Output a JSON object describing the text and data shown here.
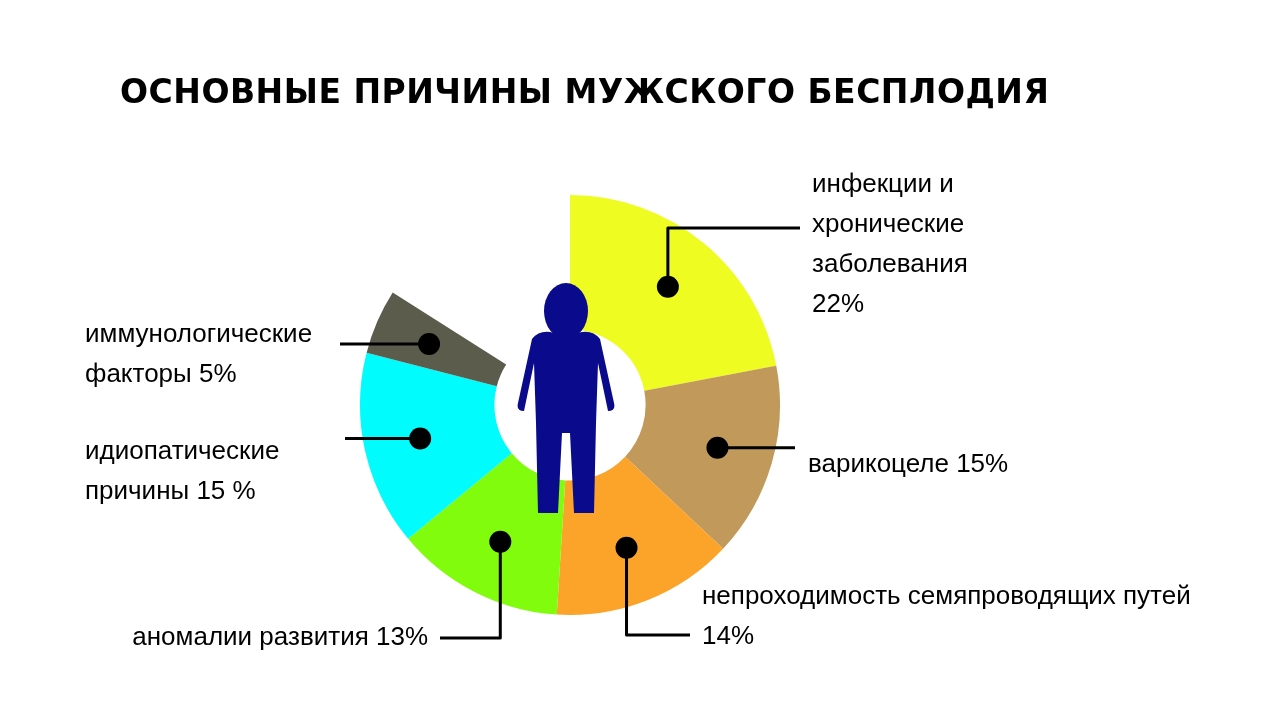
{
  "chart_data": {
    "type": "donut",
    "title": "ОСНОВНЫЕ ПРИЧИНЫ МУЖСКОГО БЕСПЛОДИЯ",
    "categories": [
      "инфекции и хронические заболевания",
      "варикоцеле",
      "непроходимость семяпроводящих путей",
      "аномалии развития",
      "идиопатические причины",
      "иммунологические факторы"
    ],
    "values": [
      22,
      15,
      14,
      13,
      15,
      5
    ],
    "value_labels": [
      "22%",
      "15%",
      "14%",
      "13%",
      "15 %",
      "5%"
    ],
    "colors": [
      "#eefc22",
      "#c19a5b",
      "#fca42a",
      "#80fc0c",
      "#00fcfc",
      "#5c5c4c"
    ]
  }
}
